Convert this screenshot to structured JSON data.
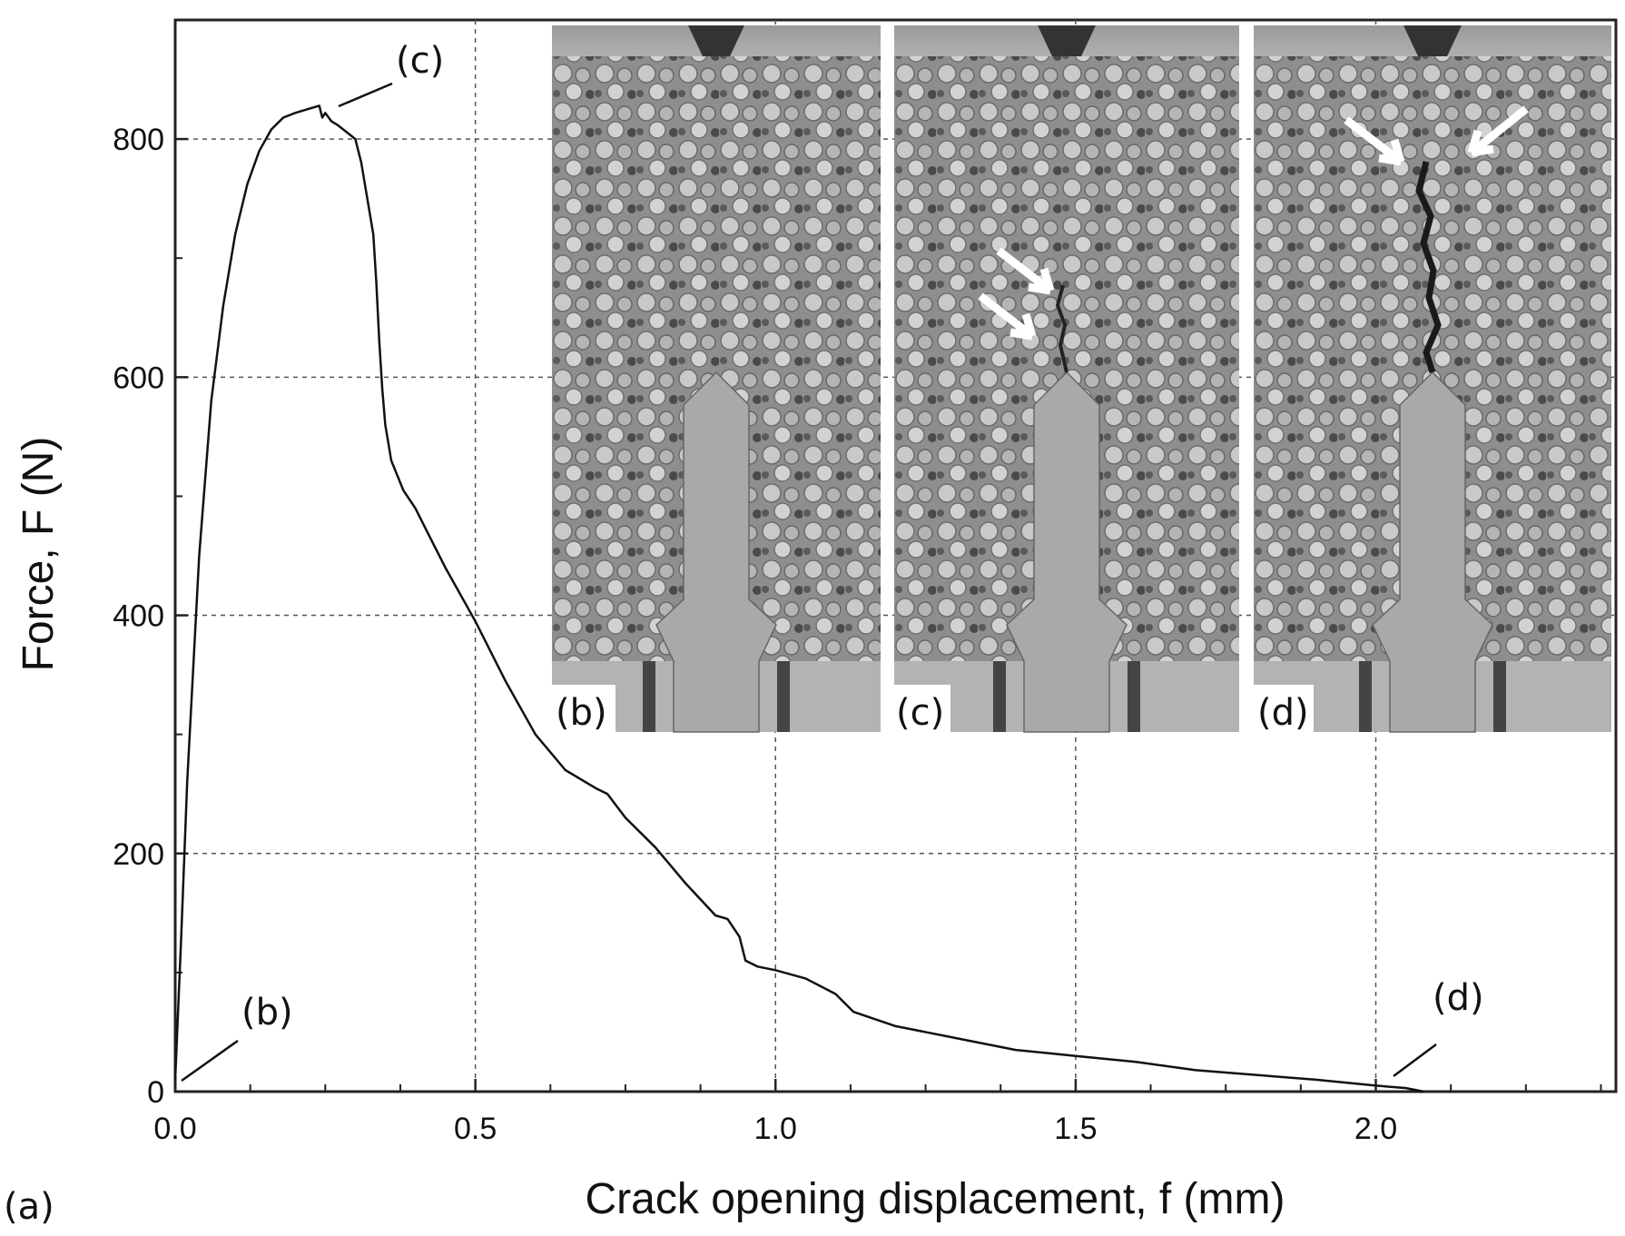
{
  "chart_data": {
    "type": "line",
    "panel_label": "(a)",
    "xlabel": "Crack opening displacement, f (mm)",
    "ylabel": "Force, F (N)",
    "xlim": [
      0,
      2.4
    ],
    "ylim": [
      0,
      900
    ],
    "xticks": [
      0.0,
      0.5,
      1.0,
      1.5,
      2.0
    ],
    "xtick_labels": [
      "0.0",
      "0.5",
      "1.0",
      "1.5",
      "2.0"
    ],
    "yticks": [
      0,
      200,
      400,
      600,
      800
    ],
    "ytick_labels": [
      "0",
      "200",
      "400",
      "600",
      "800"
    ],
    "grid": true,
    "series": [
      {
        "x": [
          0.0,
          0.01,
          0.02,
          0.04,
          0.06,
          0.08,
          0.1,
          0.12,
          0.14,
          0.16,
          0.18,
          0.2,
          0.22,
          0.24,
          0.245,
          0.25,
          0.26,
          0.27,
          0.28,
          0.3,
          0.31,
          0.32,
          0.33,
          0.335,
          0.34,
          0.345,
          0.35,
          0.36,
          0.38,
          0.4,
          0.42,
          0.45,
          0.5,
          0.55,
          0.6,
          0.65,
          0.7,
          0.72,
          0.75,
          0.8,
          0.85,
          0.9,
          0.92,
          0.94,
          0.95,
          0.97,
          1.0,
          1.05,
          1.1,
          1.13,
          1.2,
          1.3,
          1.4,
          1.5,
          1.6,
          1.7,
          1.8,
          1.9,
          2.0,
          2.05,
          2.08
        ],
        "y": [
          10,
          130,
          260,
          450,
          580,
          660,
          720,
          762,
          790,
          808,
          818,
          822,
          825,
          828,
          818,
          822,
          815,
          812,
          808,
          800,
          780,
          750,
          720,
          680,
          630,
          590,
          560,
          530,
          505,
          490,
          470,
          440,
          395,
          345,
          300,
          270,
          255,
          250,
          230,
          205,
          175,
          148,
          145,
          130,
          110,
          105,
          102,
          95,
          82,
          67,
          55,
          45,
          35,
          30,
          25,
          18,
          14,
          10,
          5,
          3,
          0
        ]
      }
    ],
    "annotations": [
      {
        "text": "(b)",
        "x": 0.0,
        "y": 10
      },
      {
        "text": "(c)",
        "x": 0.25,
        "y": 822
      },
      {
        "text": "(d)",
        "x": 2.05,
        "y": 3
      }
    ]
  },
  "inset_labels": [
    "(b)",
    "(c)",
    "(d)"
  ]
}
